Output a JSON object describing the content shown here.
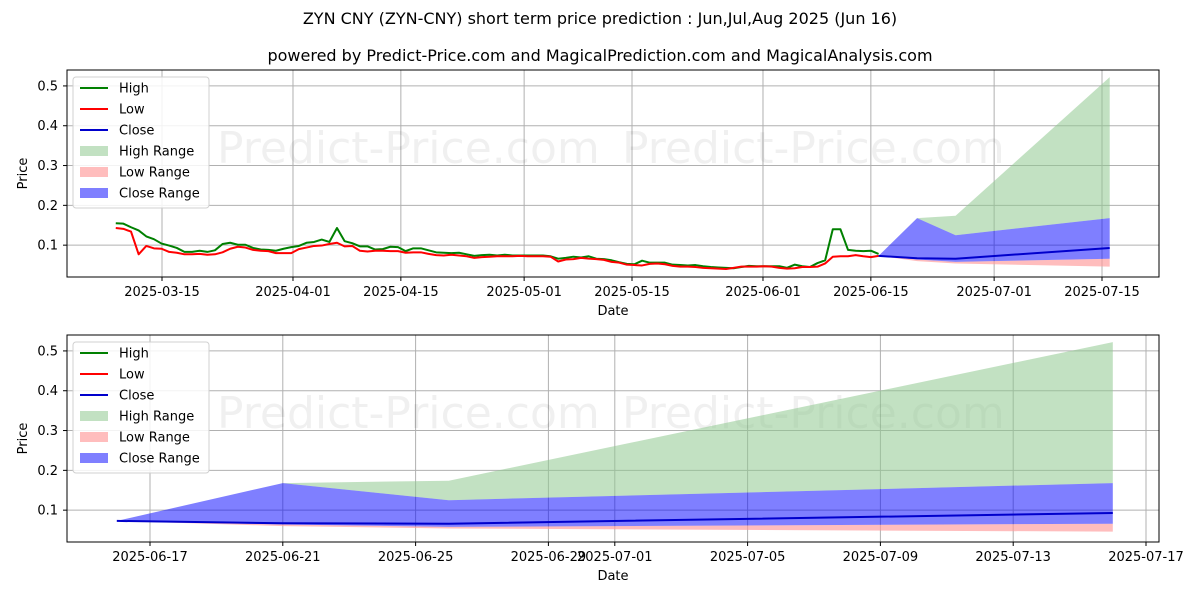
{
  "header": {
    "title": "ZYN CNY (ZYN-CNY) short term price prediction : Jun,Jul,Aug 2025 (Jun 16)",
    "subtitle": "powered by Predict-Price.com and MagicalPrediction.com and MagicalAnalysis.com"
  },
  "watermark": "Predict-Price.com",
  "colors": {
    "high": "#008000",
    "low": "#ff0000",
    "close": "#0000cc",
    "high_range": "#8fc98f",
    "low_range": "#ff9a9a",
    "close_range": "#0000ff"
  },
  "legend": [
    "High",
    "Low",
    "Close",
    "High Range",
    "Low Range",
    "Close Range"
  ],
  "chart_data": [
    {
      "type": "line",
      "title": "ZYN CNY (ZYN-CNY) short term price prediction : Jun,Jul,Aug 2025 (Jun 16)",
      "xlabel": "Date",
      "ylabel": "Price",
      "ylim": [
        0.02,
        0.54
      ],
      "yticks": [
        "0.1",
        "0.2",
        "0.3",
        "0.4",
        "0.5"
      ],
      "xticks": [
        "2025-03-15",
        "2025-04-01",
        "2025-04-15",
        "2025-05-01",
        "2025-05-15",
        "2025-06-01",
        "2025-06-15",
        "2025-07-01",
        "2025-07-15"
      ],
      "grid": true,
      "legend_position": "upper left",
      "history_start": "2025-03-09",
      "history_end": "2025-06-16",
      "series": [
        {
          "name": "High",
          "values": [
            0.155,
            0.154,
            0.145,
            0.137,
            0.122,
            0.115,
            0.104,
            0.099,
            0.093,
            0.083,
            0.083,
            0.086,
            0.083,
            0.087,
            0.103,
            0.106,
            0.101,
            0.101,
            0.093,
            0.089,
            0.088,
            0.086,
            0.091,
            0.095,
            0.098,
            0.106,
            0.108,
            0.114,
            0.108,
            0.143,
            0.11,
            0.105,
            0.097,
            0.097,
            0.089,
            0.09,
            0.096,
            0.095,
            0.085,
            0.092,
            0.092,
            0.087,
            0.082,
            0.081,
            0.08,
            0.081,
            0.077,
            0.073,
            0.075,
            0.076,
            0.074,
            0.076,
            0.074,
            0.074,
            0.074,
            0.074,
            0.074,
            0.072,
            0.066,
            0.068,
            0.071,
            0.069,
            0.072,
            0.066,
            0.065,
            0.062,
            0.057,
            0.053,
            0.052,
            0.061,
            0.056,
            0.056,
            0.056,
            0.051,
            0.05,
            0.049,
            0.05,
            0.047,
            0.045,
            0.044,
            0.043,
            0.042,
            0.045,
            0.048,
            0.047,
            0.047,
            0.047,
            0.047,
            0.043,
            0.051,
            0.047,
            0.045,
            0.055,
            0.062,
            0.14,
            0.14,
            0.088,
            0.086,
            0.085,
            0.086,
            0.078
          ]
        },
        {
          "name": "Low",
          "values": [
            0.143,
            0.141,
            0.134,
            0.077,
            0.098,
            0.092,
            0.091,
            0.083,
            0.081,
            0.077,
            0.077,
            0.078,
            0.076,
            0.077,
            0.082,
            0.091,
            0.096,
            0.094,
            0.088,
            0.086,
            0.085,
            0.08,
            0.08,
            0.08,
            0.09,
            0.094,
            0.098,
            0.099,
            0.103,
            0.106,
            0.097,
            0.098,
            0.086,
            0.084,
            0.086,
            0.086,
            0.085,
            0.085,
            0.081,
            0.082,
            0.082,
            0.078,
            0.075,
            0.074,
            0.076,
            0.074,
            0.072,
            0.068,
            0.07,
            0.071,
            0.072,
            0.072,
            0.072,
            0.073,
            0.072,
            0.072,
            0.072,
            0.071,
            0.059,
            0.064,
            0.065,
            0.068,
            0.066,
            0.065,
            0.063,
            0.058,
            0.056,
            0.051,
            0.05,
            0.049,
            0.053,
            0.054,
            0.052,
            0.048,
            0.046,
            0.046,
            0.045,
            0.043,
            0.042,
            0.041,
            0.04,
            0.043,
            0.046,
            0.046,
            0.046,
            0.047,
            0.046,
            0.043,
            0.041,
            0.042,
            0.045,
            0.045,
            0.046,
            0.054,
            0.071,
            0.072,
            0.072,
            0.075,
            0.072,
            0.07,
            0.073
          ]
        },
        {
          "name": "Close",
          "forecast_dates": [
            "2025-06-16",
            "2025-06-21",
            "2025-06-26",
            "2025-07-16"
          ],
          "values": [
            0.073,
            0.067,
            0.066,
            0.093
          ]
        },
        {
          "name": "High Range",
          "forecast_dates": [
            "2025-06-16",
            "2025-06-21",
            "2025-06-26",
            "2025-07-16"
          ],
          "upper": [
            0.073,
            0.168,
            0.174,
            0.522
          ],
          "lower": [
            0.073,
            0.168,
            0.125,
            0.168
          ]
        },
        {
          "name": "Close Range",
          "forecast_dates": [
            "2025-06-16",
            "2025-06-21",
            "2025-06-26",
            "2025-07-16"
          ],
          "upper": [
            0.073,
            0.168,
            0.125,
            0.168
          ],
          "lower": [
            0.073,
            0.064,
            0.058,
            0.066
          ]
        },
        {
          "name": "Low Range",
          "forecast_dates": [
            "2025-06-16",
            "2025-06-21",
            "2025-06-26",
            "2025-07-16"
          ],
          "upper": [
            0.073,
            0.064,
            0.058,
            0.066
          ],
          "lower": [
            0.073,
            0.06,
            0.054,
            0.046
          ]
        }
      ]
    },
    {
      "type": "area",
      "title": "",
      "xlabel": "Date",
      "ylabel": "Price",
      "ylim": [
        0.02,
        0.54
      ],
      "yticks": [
        "0.1",
        "0.2",
        "0.3",
        "0.4",
        "0.5"
      ],
      "xticks": [
        "2025-06-17",
        "2025-06-21",
        "2025-06-25",
        "2025-06-29",
        "2025-07-01",
        "2025-07-05",
        "2025-07-09",
        "2025-07-13",
        "2025-07-17"
      ],
      "grid": true,
      "legend_position": "upper left",
      "forecast_dates": [
        "2025-06-16",
        "2025-06-21",
        "2025-06-26",
        "2025-07-16"
      ],
      "series": [
        {
          "name": "Close",
          "values": [
            0.073,
            0.067,
            0.066,
            0.093
          ]
        },
        {
          "name": "High Range",
          "upper": [
            0.073,
            0.168,
            0.174,
            0.522
          ],
          "lower": [
            0.073,
            0.168,
            0.125,
            0.168
          ]
        },
        {
          "name": "Close Range",
          "upper": [
            0.073,
            0.168,
            0.125,
            0.168
          ],
          "lower": [
            0.073,
            0.064,
            0.058,
            0.066
          ]
        },
        {
          "name": "Low Range",
          "upper": [
            0.073,
            0.064,
            0.058,
            0.066
          ],
          "lower": [
            0.073,
            0.06,
            0.054,
            0.046
          ]
        }
      ]
    }
  ]
}
